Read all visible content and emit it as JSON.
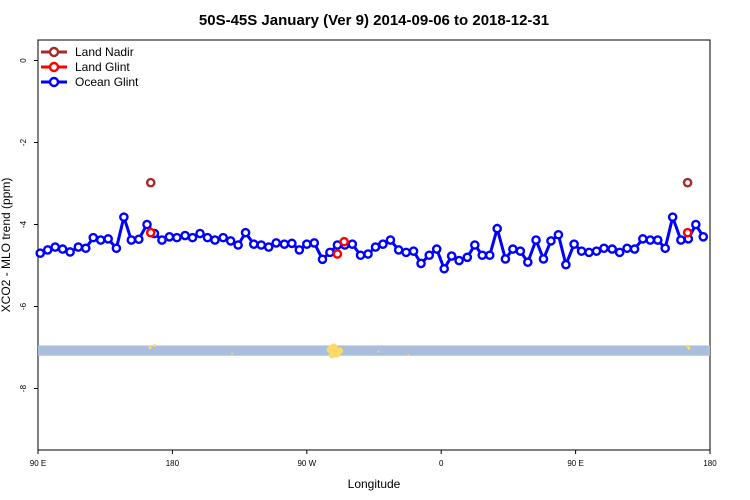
{
  "chart_data": {
    "type": "line",
    "title": "50S-45S January (Ver 9)   2014-09-06 to 2018-12-31",
    "xlabel": "Longitude",
    "ylabel": "XCO2 - MLO trend (ppm)",
    "x_ticks": [
      {
        "value": -90,
        "label": "90 E"
      },
      {
        "value": 0,
        "label": "180"
      },
      {
        "value": 90,
        "label": "90 W"
      },
      {
        "value": 180,
        "label": "0"
      },
      {
        "value": 270,
        "label": "90 E"
      },
      {
        "value": 360,
        "label": "180"
      }
    ],
    "y_ticks": [
      {
        "value": 0,
        "label": "0"
      },
      {
        "value": -2,
        "label": "-2"
      },
      {
        "value": -4,
        "label": "-4"
      },
      {
        "value": -6,
        "label": "-6"
      },
      {
        "value": -8,
        "label": "-8"
      }
    ],
    "xlim": [
      -90,
      360
    ],
    "ylim": [
      -9.5,
      0.5
    ],
    "legend_position": "top-left",
    "grid": false,
    "series": [
      {
        "name": "Land Nadir",
        "color": "#a52a2a",
        "line": false,
        "x": [
          -14.5,
          345
        ],
        "y": [
          -2.98,
          -2.98
        ]
      },
      {
        "name": "Land Glint",
        "color": "#ff0000",
        "line": false,
        "x": [
          -14.5,
          110.5,
          115,
          345
        ],
        "y": [
          -4.2,
          -4.72,
          -4.42,
          -4.2
        ]
      },
      {
        "name": "Ocean Glint",
        "color": "#0000ff",
        "line": true,
        "x": [
          -88.5,
          -83.5,
          -78.5,
          -73.5,
          -68.5,
          -63,
          -58,
          -53,
          -48,
          -43,
          -37.5,
          -32.5,
          -27.5,
          -22.5,
          -17,
          -12,
          -7,
          -2,
          3,
          8.5,
          13.5,
          18.5,
          23.5,
          28.5,
          34,
          39,
          44,
          49,
          54.5,
          59.5,
          64.5,
          69.5,
          75,
          80,
          85,
          90,
          95,
          100.5,
          105.5,
          110.5,
          115.5,
          120.5,
          126,
          131,
          136,
          141,
          146,
          151.5,
          156.5,
          161.5,
          166.5,
          172,
          177,
          182,
          187,
          192,
          197.5,
          202.5,
          207.5,
          212.5,
          217.5,
          223,
          228,
          233,
          238,
          243.5,
          248.5,
          253.5,
          258.5,
          263.5,
          269,
          274,
          279,
          284,
          289,
          294.5,
          299.5,
          304.5,
          309.5,
          315,
          320,
          325,
          330,
          335,
          340.5,
          345.5,
          350.5,
          355.5
        ],
        "y": [
          -4.7,
          -4.62,
          -4.55,
          -4.6,
          -4.67,
          -4.55,
          -4.58,
          -4.32,
          -4.38,
          -4.35,
          -4.58,
          -3.82,
          -4.38,
          -4.36,
          -4.0,
          -4.22,
          -4.38,
          -4.3,
          -4.32,
          -4.27,
          -4.32,
          -4.22,
          -4.32,
          -4.38,
          -4.32,
          -4.4,
          -4.5,
          -4.2,
          -4.48,
          -4.5,
          -4.55,
          -4.45,
          -4.48,
          -4.46,
          -4.62,
          -4.48,
          -4.45,
          -4.85,
          -4.68,
          -4.5,
          -4.5,
          -4.48,
          -4.75,
          -4.72,
          -4.55,
          -4.48,
          -4.38,
          -4.62,
          -4.68,
          -4.65,
          -4.95,
          -4.75,
          -4.6,
          -5.08,
          -4.77,
          -4.88,
          -4.8,
          -4.5,
          -4.75,
          -4.75,
          -4.1,
          -4.84,
          -4.6,
          -4.65,
          -4.92,
          -4.38,
          -4.84,
          -4.4,
          -4.25,
          -4.98,
          -4.48,
          -4.65,
          -4.68,
          -4.65,
          -4.58,
          -4.6,
          -4.68,
          -4.58,
          -4.6,
          -4.35,
          -4.38,
          -4.38,
          -4.58,
          -3.82,
          -4.38,
          -4.35,
          -4.0,
          -4.3
        ]
      }
    ],
    "band": {
      "y_from": -6.95,
      "y_to": -7.2,
      "color": "#a8bedc"
    },
    "band_markers": {
      "color": "#ffd966",
      "x": [
        -15,
        -12,
        106,
        108,
        108,
        110,
        112,
        107,
        40,
        138,
        158,
        345,
        346
      ],
      "y": [
        -7.0,
        -6.95,
        -7.05,
        -7.12,
        -7.0,
        -7.15,
        -7.08,
        -7.18,
        -7.15,
        -7.1,
        -7.18,
        -6.97,
        -7.02
      ],
      "r": [
        1.5,
        1.5,
        4,
        4,
        4,
        4,
        3.5,
        3.5,
        1,
        1,
        1,
        1.5,
        1.5
      ]
    }
  }
}
